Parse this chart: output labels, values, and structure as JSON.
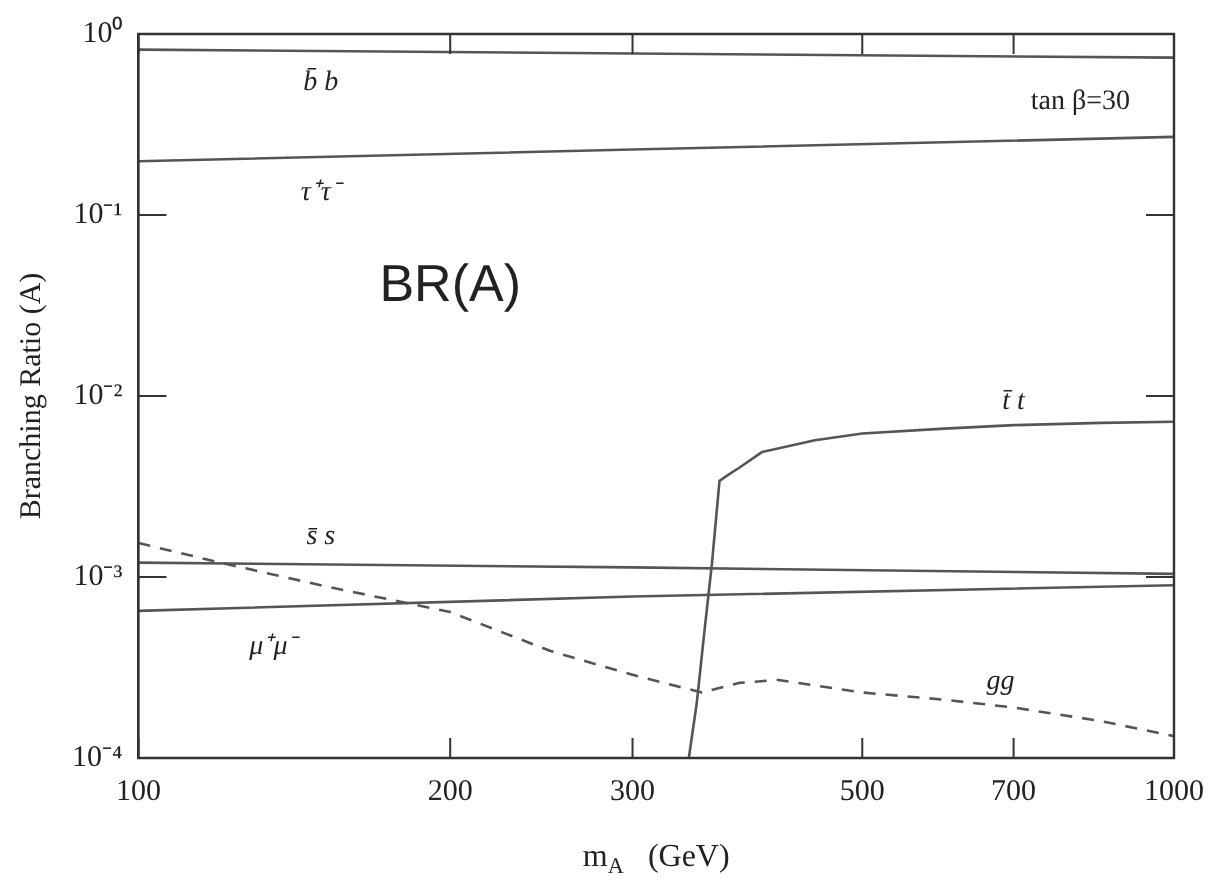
{
  "chart_data": {
    "type": "line",
    "xlabel": "m$_{A}$   (GeV)",
    "ylabel": "Branching Ratio (A)",
    "log": "xy",
    "grid": false,
    "legend": false,
    "marker": "none",
    "xlim": [
      100,
      1000
    ],
    "xticks": [
      100,
      200,
      300,
      500,
      700,
      1000
    ],
    "ylim": [
      0.0001,
      1
    ],
    "yticks": [
      {
        "value": 0.0001,
        "label": "10⁻⁴"
      },
      {
        "value": 0.001,
        "label": "10⁻³"
      },
      {
        "value": 0.01,
        "label": "10⁻²"
      },
      {
        "value": 0.1,
        "label": "10⁻¹"
      },
      {
        "value": 1,
        "label": "10⁰"
      }
    ],
    "annotations": [
      "tan β=30",
      "BR(A)"
    ],
    "series": [
      {
        "name": "b̄ b",
        "color": "#555555",
        "x": [
          100,
          300,
          1000
        ],
        "values": [
          0.82,
          0.78,
          0.74
        ]
      },
      {
        "name": "τ⁺τ⁻",
        "color": "#555555",
        "x": [
          100,
          300,
          1000
        ],
        "values": [
          0.198,
          0.23,
          0.27
        ]
      },
      {
        "name": "t̄ t",
        "color": "#555555",
        "x": [
          340,
          346,
          352,
          358,
          364,
          372,
          380,
          400,
          450,
          500,
          600,
          700,
          850,
          1000
        ],
        "values": [
          0.0001,
          0.0002,
          0.0005,
          0.0012,
          0.0034,
          0.0037,
          0.004,
          0.0049,
          0.0057,
          0.0062,
          0.0066,
          0.0069,
          0.0071,
          0.0072
        ]
      },
      {
        "name": "s̄ s",
        "color": "#555555",
        "x": [
          100,
          300,
          1000
        ],
        "values": [
          0.0012,
          0.00113,
          0.00104
        ]
      },
      {
        "name": "μ⁺μ⁻",
        "color": "#555555",
        "x": [
          100,
          300,
          1000
        ],
        "values": [
          0.00065,
          0.00078,
          0.0009
        ]
      },
      {
        "name": "gg",
        "color": "#555555",
        "line_style": "dashed",
        "x": [
          100,
          120,
          150,
          200,
          250,
          300,
          350,
          380,
          415,
          500,
          600,
          700,
          850,
          1000
        ],
        "values": [
          0.00154,
          0.0012,
          0.0009,
          0.00064,
          0.00039,
          0.000288,
          0.00023,
          0.00026,
          0.00027,
          0.00023,
          0.00021,
          0.00019,
          0.00016,
          0.000132
        ]
      }
    ]
  }
}
